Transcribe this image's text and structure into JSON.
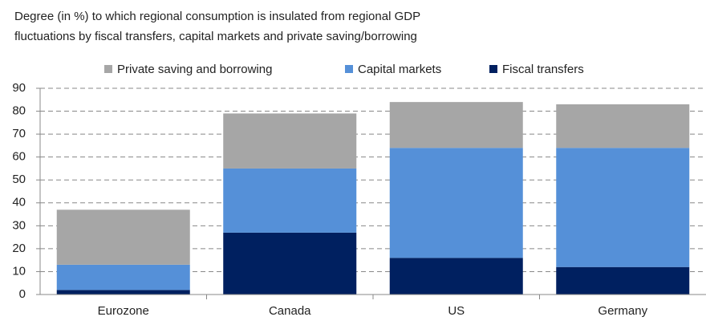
{
  "chart_data": {
    "type": "stacked_bar",
    "title": "Degree (in %) to which regional consumption is insulated from regional GDP",
    "subtitle": "fluctuations by fiscal transfers, capital markets and private saving/borrowing",
    "categories": [
      "Eurozone",
      "Canada",
      "US",
      "Germany"
    ],
    "series": [
      {
        "name": "Fiscal transfers",
        "color": "#002060",
        "values": [
          2,
          27,
          16,
          12
        ]
      },
      {
        "name": "Capital markets",
        "color": "#5590d8",
        "values": [
          11,
          28,
          48,
          52
        ]
      },
      {
        "name": "Private saving and borrowing",
        "color": "#a6a6a6",
        "values": [
          24,
          24,
          20,
          19
        ]
      }
    ],
    "ylim": [
      0,
      90
    ],
    "yticks": [
      0,
      10,
      20,
      30,
      40,
      50,
      60,
      70,
      80,
      90
    ],
    "grid": true
  }
}
